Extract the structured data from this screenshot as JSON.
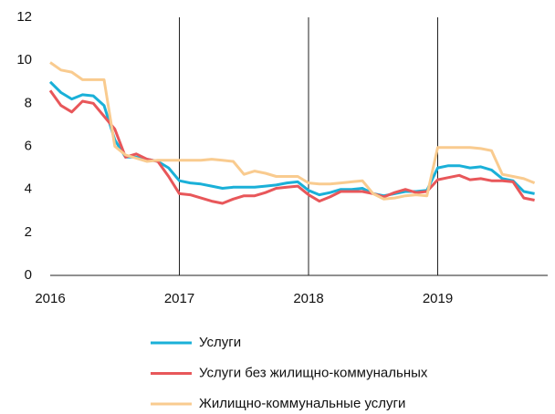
{
  "chart_data": {
    "type": "line",
    "categories": [
      "2016",
      null,
      null,
      null,
      null,
      null,
      null,
      null,
      null,
      null,
      null,
      null,
      "2017",
      null,
      null,
      null,
      null,
      null,
      null,
      null,
      null,
      null,
      null,
      null,
      "2018",
      null,
      null,
      null,
      null,
      null,
      null,
      null,
      null,
      null,
      null,
      null,
      "2019",
      null,
      null,
      null,
      null,
      null,
      null,
      null,
      null,
      null
    ],
    "series": [
      {
        "name": "Услуги",
        "color": "#1ab0d8",
        "values": [
          9.0,
          8.5,
          8.2,
          8.4,
          8.35,
          7.9,
          6.3,
          5.5,
          5.5,
          5.4,
          5.3,
          5.0,
          4.4,
          4.3,
          4.25,
          4.15,
          4.05,
          4.1,
          4.1,
          4.1,
          4.15,
          4.2,
          4.3,
          4.35,
          3.95,
          3.75,
          3.85,
          4.0,
          4.0,
          4.05,
          3.8,
          3.7,
          3.8,
          3.9,
          3.9,
          3.95,
          5.0,
          5.1,
          5.1,
          5.0,
          5.05,
          4.9,
          4.5,
          4.4,
          3.9,
          3.8
        ]
      },
      {
        "name": "Услуги без жилищно-коммунальных",
        "color": "#e8575a",
        "values": [
          8.6,
          7.9,
          7.6,
          8.1,
          8.0,
          7.4,
          6.8,
          5.5,
          5.65,
          5.4,
          5.3,
          4.6,
          3.8,
          3.75,
          3.6,
          3.45,
          3.35,
          3.55,
          3.7,
          3.7,
          3.85,
          4.05,
          4.1,
          4.15,
          3.75,
          3.45,
          3.65,
          3.9,
          3.9,
          3.9,
          3.8,
          3.65,
          3.85,
          4.0,
          3.85,
          3.9,
          4.45,
          4.55,
          4.65,
          4.45,
          4.5,
          4.4,
          4.4,
          4.35,
          3.6,
          3.5
        ]
      },
      {
        "name": "Жилищно-коммунальные услуги",
        "color": "#f9cb8f",
        "values": [
          9.9,
          9.55,
          9.45,
          9.1,
          9.1,
          9.1,
          6.0,
          5.6,
          5.45,
          5.3,
          5.35,
          5.35,
          5.35,
          5.35,
          5.35,
          5.4,
          5.35,
          5.3,
          4.7,
          4.85,
          4.75,
          4.6,
          4.6,
          4.6,
          4.3,
          4.25,
          4.25,
          4.3,
          4.35,
          4.4,
          3.8,
          3.55,
          3.6,
          3.7,
          3.75,
          3.7,
          5.95,
          5.95,
          5.95,
          5.95,
          5.9,
          5.8,
          4.7,
          4.6,
          4.5,
          4.3
        ]
      }
    ],
    "ylim": [
      0,
      12
    ],
    "yticks": [
      0,
      2,
      4,
      6,
      8,
      10,
      12
    ],
    "grid": false
  }
}
